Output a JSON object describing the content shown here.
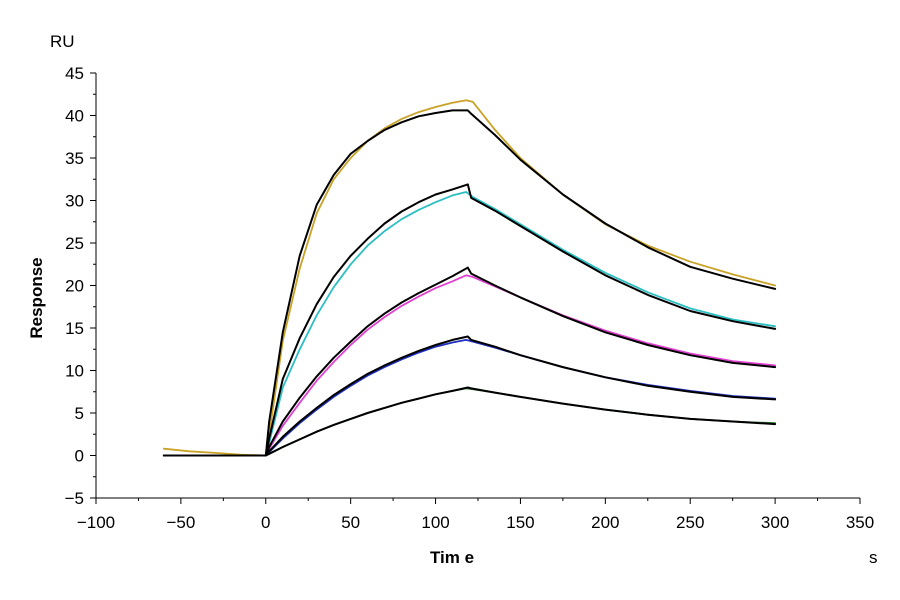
{
  "chart_data": {
    "type": "line",
    "title": "",
    "xlabel": "Tim e",
    "ylabel": "Response",
    "x_unit": "s",
    "y_unit": "RU",
    "xlim": [
      -100,
      350
    ],
    "ylim": [
      -5,
      45
    ],
    "x_ticks": [
      -100,
      -50,
      0,
      50,
      100,
      150,
      200,
      250,
      300,
      350
    ],
    "x_tick_labels": [
      "−100",
      "−50",
      "0",
      "50",
      "100",
      "150",
      "200",
      "250",
      "300",
      "350"
    ],
    "y_ticks": [
      -5,
      0,
      5,
      10,
      15,
      20,
      25,
      30,
      35,
      40,
      45
    ],
    "y_tick_labels": [
      "−5",
      "0",
      "5",
      "10",
      "15",
      "20",
      "25",
      "30",
      "35",
      "40",
      "45"
    ],
    "grid": false,
    "legend": "none",
    "series": [
      {
        "color": "#C9A227",
        "x": [
          -60,
          -45,
          -30,
          -15,
          0,
          2,
          10,
          20,
          30,
          40,
          50,
          60,
          70,
          80,
          90,
          100,
          110,
          118,
          122,
          135,
          150,
          175,
          200,
          225,
          250,
          275,
          300
        ],
        "y": [
          0.8,
          0.5,
          0.3,
          0.1,
          0.0,
          2.5,
          13.5,
          22.0,
          28.5,
          32.5,
          35.0,
          37.0,
          38.5,
          39.6,
          40.4,
          41.0,
          41.5,
          41.8,
          41.6,
          38.3,
          35.0,
          30.7,
          27.2,
          24.7,
          22.8,
          21.3,
          20.0
        ]
      },
      {
        "color": "#2BBFC4",
        "x": [
          -60,
          0,
          2,
          10,
          20,
          30,
          40,
          50,
          60,
          70,
          80,
          90,
          100,
          110,
          118,
          122,
          135,
          150,
          175,
          200,
          225,
          250,
          275,
          300
        ],
        "y": [
          0.0,
          0.0,
          1.5,
          8.0,
          12.5,
          16.5,
          19.8,
          22.5,
          24.7,
          26.4,
          27.8,
          28.9,
          29.8,
          30.6,
          31.0,
          30.4,
          29.0,
          27.2,
          24.2,
          21.5,
          19.2,
          17.3,
          16.0,
          15.2
        ]
      },
      {
        "color": "#E040D0",
        "x": [
          -60,
          0,
          2,
          10,
          20,
          30,
          40,
          50,
          60,
          70,
          80,
          90,
          100,
          110,
          118,
          122,
          135,
          150,
          175,
          200,
          225,
          250,
          275,
          300
        ],
        "y": [
          0.0,
          0.0,
          0.8,
          3.5,
          6.2,
          8.8,
          11.0,
          13.0,
          14.8,
          16.3,
          17.6,
          18.7,
          19.7,
          20.5,
          21.2,
          21.0,
          19.9,
          18.6,
          16.5,
          14.7,
          13.2,
          12.0,
          11.1,
          10.6
        ]
      },
      {
        "color": "#1E2FC0",
        "x": [
          -60,
          0,
          2,
          10,
          20,
          30,
          40,
          50,
          60,
          70,
          80,
          90,
          100,
          110,
          118,
          122,
          135,
          150,
          175,
          200,
          225,
          250,
          275,
          300
        ],
        "y": [
          0.0,
          0.0,
          0.4,
          2.0,
          3.8,
          5.4,
          6.9,
          8.2,
          9.4,
          10.4,
          11.3,
          12.1,
          12.8,
          13.3,
          13.6,
          13.4,
          12.7,
          11.8,
          10.4,
          9.2,
          8.3,
          7.6,
          7.0,
          6.7
        ]
      },
      {
        "color": "#2E7D32",
        "x": [
          -60,
          0,
          2,
          10,
          20,
          30,
          40,
          50,
          60,
          70,
          80,
          90,
          100,
          110,
          118,
          122,
          135,
          150,
          175,
          200,
          225,
          250,
          275,
          300
        ],
        "y": [
          0.0,
          0.0,
          0.2,
          1.0,
          1.9,
          2.8,
          3.6,
          4.3,
          5.0,
          5.6,
          6.2,
          6.7,
          7.2,
          7.6,
          7.9,
          7.8,
          7.4,
          6.9,
          6.1,
          5.4,
          4.8,
          4.3,
          4.0,
          3.8
        ]
      },
      {
        "color": "#000000",
        "x": [
          -60,
          0,
          2,
          10,
          20,
          30,
          40,
          50,
          60,
          70,
          80,
          90,
          100,
          110,
          119,
          121,
          135,
          150,
          175,
          200,
          225,
          250,
          275,
          300
        ],
        "y": [
          0.0,
          0.0,
          4.0,
          14.5,
          23.5,
          29.5,
          33.0,
          35.5,
          37.0,
          38.3,
          39.2,
          39.9,
          40.3,
          40.6,
          40.6,
          40.2,
          37.7,
          34.8,
          30.7,
          27.3,
          24.5,
          22.2,
          20.8,
          19.6
        ]
      },
      {
        "color": "#000000",
        "x": [
          -60,
          0,
          2,
          10,
          20,
          30,
          40,
          50,
          60,
          70,
          80,
          90,
          100,
          110,
          119,
          121,
          135,
          150,
          175,
          200,
          225,
          250,
          275,
          300
        ],
        "y": [
          0.0,
          0.0,
          2.0,
          9.0,
          13.8,
          17.8,
          21.0,
          23.5,
          25.5,
          27.3,
          28.7,
          29.8,
          30.7,
          31.3,
          31.9,
          30.3,
          28.8,
          27.0,
          24.0,
          21.2,
          18.9,
          17.0,
          15.8,
          14.9
        ]
      },
      {
        "color": "#000000",
        "x": [
          -60,
          0,
          2,
          10,
          20,
          30,
          40,
          50,
          60,
          70,
          80,
          90,
          100,
          110,
          119,
          121,
          135,
          150,
          175,
          200,
          225,
          250,
          275,
          300
        ],
        "y": [
          0.0,
          0.0,
          1.0,
          4.0,
          6.8,
          9.3,
          11.5,
          13.4,
          15.2,
          16.7,
          18.0,
          19.1,
          20.1,
          21.1,
          22.1,
          21.4,
          20.0,
          18.6,
          16.4,
          14.5,
          13.0,
          11.8,
          10.9,
          10.4
        ]
      },
      {
        "color": "#000000",
        "x": [
          -60,
          0,
          2,
          10,
          20,
          30,
          40,
          50,
          60,
          70,
          80,
          90,
          100,
          110,
          119,
          121,
          135,
          150,
          175,
          200,
          225,
          250,
          275,
          300
        ],
        "y": [
          0.0,
          0.0,
          0.5,
          2.2,
          4.0,
          5.6,
          7.1,
          8.4,
          9.6,
          10.6,
          11.5,
          12.3,
          13.0,
          13.6,
          14.0,
          13.6,
          12.8,
          11.8,
          10.4,
          9.2,
          8.2,
          7.5,
          6.9,
          6.6
        ]
      },
      {
        "color": "#000000",
        "x": [
          -60,
          0,
          2,
          10,
          20,
          30,
          40,
          50,
          60,
          70,
          80,
          90,
          100,
          110,
          119,
          121,
          135,
          150,
          175,
          200,
          225,
          250,
          275,
          300
        ],
        "y": [
          0.0,
          0.0,
          0.2,
          1.0,
          1.9,
          2.8,
          3.6,
          4.3,
          5.0,
          5.6,
          6.2,
          6.7,
          7.2,
          7.6,
          8.0,
          7.9,
          7.4,
          6.9,
          6.1,
          5.4,
          4.8,
          4.3,
          4.0,
          3.7
        ]
      }
    ]
  }
}
